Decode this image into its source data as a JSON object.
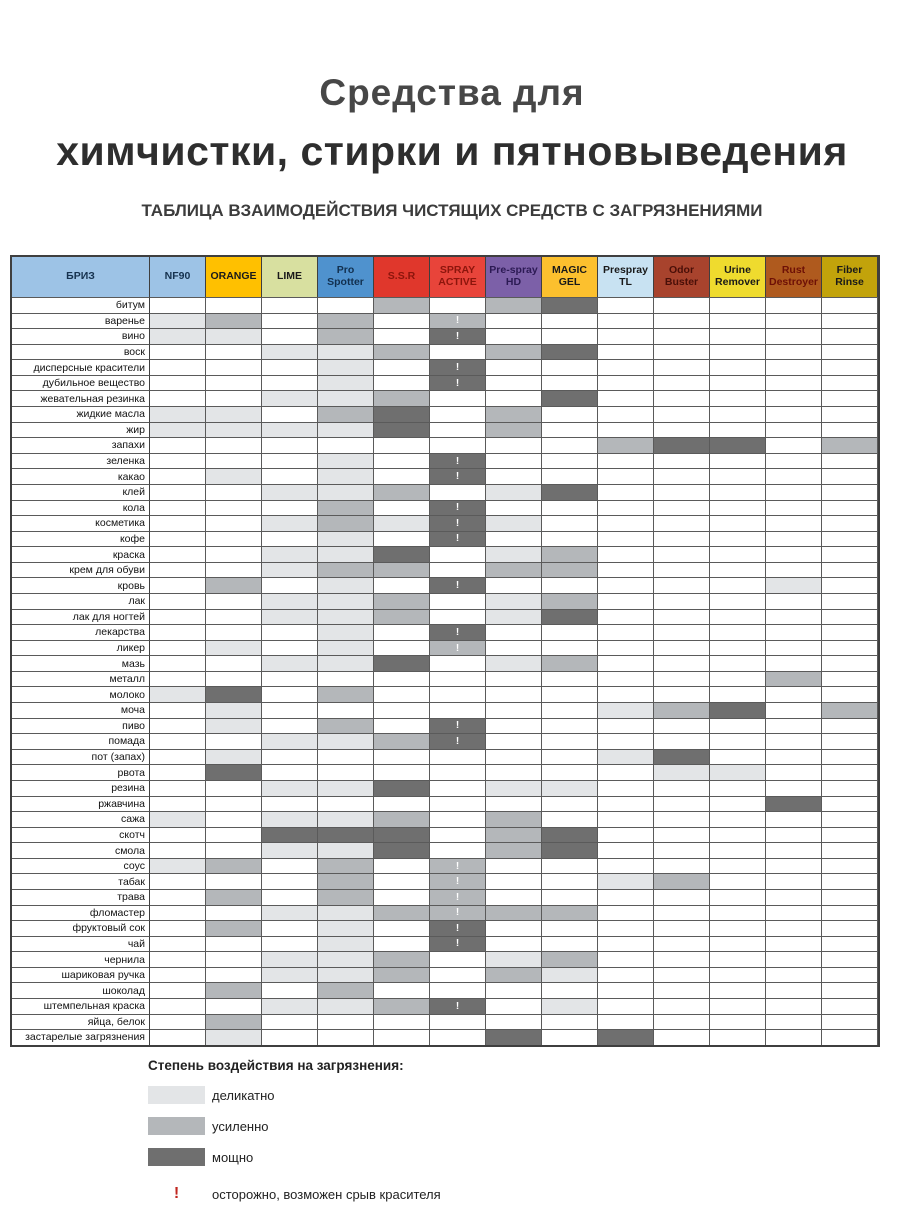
{
  "title": {
    "line1": "Средства для",
    "line2": "химчистки, стирки и пятновыведения"
  },
  "subtitle": "ТАБЛИЦА ВЗАИМОДЕЙСТВИЯ ЧИСТЯЩИХ СРЕДСТВ С ЗАГРЯЗНЕНИЯМИ",
  "chart_data": {
    "type": "heatmap",
    "corner": {
      "label": "БРИЗ",
      "bg": "#9dc3e6",
      "fg": "#16324f"
    },
    "palette": {
      "L": "#e3e5e7",
      "M": "#b4b7ba",
      "D": "#6f6f6f"
    },
    "value_meaning": {
      "L": "деликатно",
      "M": "усиленно",
      "D": "мощно",
      "!": "осторожно, возможен срыв красителя"
    },
    "columns": [
      {
        "label": "NF90",
        "bg": "#9dc3e6",
        "fg": "#16324f"
      },
      {
        "label": "ORANGE",
        "bg": "#ffc000",
        "fg": "#1a1a1a"
      },
      {
        "label": "LIME",
        "bg": "#d8e0a0",
        "fg": "#1a1a1a"
      },
      {
        "label": "Pro Spotter",
        "bg": "#4f92ce",
        "fg": "#12304f"
      },
      {
        "label": "S.S.R",
        "bg": "#e0372c",
        "fg": "#8c150c"
      },
      {
        "label": "SPRAY ACTIVE",
        "bg": "#e8443a",
        "fg": "#8c150c"
      },
      {
        "label": "Pre-spray HD",
        "bg": "#7c60a8",
        "fg": "#2c1a54"
      },
      {
        "label": "MAGIC GEL",
        "bg": "#fcc02e",
        "fg": "#191919"
      },
      {
        "label": "Prespray TL",
        "bg": "#c8e2f2",
        "fg": "#191919"
      },
      {
        "label": "Odor Buster",
        "bg": "#a8432d",
        "fg": "#4a0f08"
      },
      {
        "label": "Urine Remover",
        "bg": "#efdb2e",
        "fg": "#191919"
      },
      {
        "label": "Rust Destroyer",
        "bg": "#af5a1e",
        "fg": "#6e1006"
      },
      {
        "label": "Fiber Rinse",
        "bg": "#c2a30b",
        "fg": "#191919"
      }
    ],
    "rows": [
      {
        "label": "битум",
        "cells": [
          "",
          "",
          "",
          "",
          "M",
          "",
          "M",
          "D",
          "",
          "",
          "",
          "",
          ""
        ]
      },
      {
        "label": "варенье",
        "cells": [
          "L",
          "M",
          "",
          "M",
          "",
          "M!",
          "",
          "",
          "",
          "",
          "",
          "",
          ""
        ]
      },
      {
        "label": "вино",
        "cells": [
          "L",
          "L",
          "",
          "M",
          "",
          "D!",
          "",
          "",
          "",
          "",
          "",
          "",
          ""
        ]
      },
      {
        "label": "воск",
        "cells": [
          "",
          "",
          "L",
          "L",
          "M",
          "",
          "M",
          "D",
          "",
          "",
          "",
          "",
          ""
        ]
      },
      {
        "label": "дисперсные красители",
        "cells": [
          "",
          "",
          "",
          "L",
          "",
          "D!",
          "",
          "",
          "",
          "",
          "",
          "",
          ""
        ]
      },
      {
        "label": "дубильное вещество",
        "cells": [
          "",
          "",
          "",
          "L",
          "",
          "D!",
          "",
          "",
          "",
          "",
          "",
          "",
          ""
        ]
      },
      {
        "label": "жевательная резинка",
        "cells": [
          "",
          "",
          "L",
          "L",
          "M",
          "",
          "",
          "D",
          "",
          "",
          "",
          "",
          ""
        ]
      },
      {
        "label": "жидкие масла",
        "cells": [
          "L",
          "L",
          "",
          "M",
          "D",
          "",
          "M",
          "",
          "",
          "",
          "",
          "",
          ""
        ]
      },
      {
        "label": "жир",
        "cells": [
          "L",
          "L",
          "L",
          "L",
          "D",
          "",
          "M",
          "",
          "",
          "",
          "",
          "",
          ""
        ]
      },
      {
        "label": "запахи",
        "cells": [
          "",
          "",
          "",
          "",
          "",
          "",
          "",
          "",
          "M",
          "D",
          "D",
          "",
          "M"
        ]
      },
      {
        "label": "зеленка",
        "cells": [
          "",
          "",
          "",
          "L",
          "",
          "D!",
          "",
          "",
          "",
          "",
          "",
          "",
          ""
        ]
      },
      {
        "label": "какао",
        "cells": [
          "",
          "L",
          "",
          "L",
          "",
          "D!",
          "",
          "",
          "",
          "",
          "",
          "",
          ""
        ]
      },
      {
        "label": "клей",
        "cells": [
          "",
          "",
          "L",
          "L",
          "M",
          "",
          "L",
          "D",
          "",
          "",
          "",
          "",
          ""
        ]
      },
      {
        "label": "кола",
        "cells": [
          "",
          "",
          "",
          "M",
          "",
          "D!",
          "",
          "",
          "",
          "",
          "",
          "",
          ""
        ]
      },
      {
        "label": "косметика",
        "cells": [
          "",
          "",
          "L",
          "M",
          "L",
          "D!",
          "L",
          "",
          "",
          "",
          "",
          "",
          ""
        ]
      },
      {
        "label": "кофе",
        "cells": [
          "",
          "",
          "",
          "L",
          "",
          "D!",
          "",
          "",
          "",
          "",
          "",
          "",
          ""
        ]
      },
      {
        "label": "краска",
        "cells": [
          "",
          "",
          "L",
          "L",
          "D",
          "",
          "L",
          "M",
          "",
          "",
          "",
          "",
          ""
        ]
      },
      {
        "label": "крем для обуви",
        "cells": [
          "",
          "",
          "L",
          "M",
          "M",
          "",
          "M",
          "M",
          "",
          "",
          "",
          "",
          ""
        ]
      },
      {
        "label": "кровь",
        "cells": [
          "",
          "M",
          "",
          "L",
          "",
          "D!",
          "",
          "",
          "",
          "",
          "",
          "L",
          ""
        ]
      },
      {
        "label": "лак",
        "cells": [
          "",
          "",
          "L",
          "L",
          "M",
          "",
          "L",
          "M",
          "",
          "",
          "",
          "",
          ""
        ]
      },
      {
        "label": "лак для ногтей",
        "cells": [
          "",
          "",
          "L",
          "L",
          "M",
          "",
          "L",
          "D",
          "",
          "",
          "",
          "",
          ""
        ]
      },
      {
        "label": "лекарства",
        "cells": [
          "",
          "",
          "",
          "L",
          "",
          "D!",
          "",
          "",
          "",
          "",
          "",
          "",
          ""
        ]
      },
      {
        "label": "ликер",
        "cells": [
          "",
          "L",
          "",
          "L",
          "",
          "M!",
          "",
          "",
          "",
          "",
          "",
          "",
          ""
        ]
      },
      {
        "label": "мазь",
        "cells": [
          "",
          "",
          "L",
          "L",
          "D",
          "",
          "L",
          "M",
          "",
          "",
          "",
          "",
          ""
        ]
      },
      {
        "label": "металл",
        "cells": [
          "",
          "",
          "",
          "",
          "",
          "",
          "",
          "",
          "",
          "",
          "",
          "M",
          ""
        ]
      },
      {
        "label": "молоко",
        "cells": [
          "L",
          "D",
          "",
          "M",
          "",
          "",
          "",
          "",
          "",
          "",
          "",
          "",
          ""
        ]
      },
      {
        "label": "моча",
        "cells": [
          "",
          "L",
          "",
          "",
          "",
          "",
          "",
          "",
          "L",
          "M",
          "D",
          "",
          "M"
        ]
      },
      {
        "label": "пиво",
        "cells": [
          "",
          "L",
          "",
          "M",
          "",
          "D!",
          "",
          "",
          "",
          "",
          "",
          "",
          ""
        ]
      },
      {
        "label": "помада",
        "cells": [
          "",
          "",
          "L",
          "L",
          "M",
          "D!",
          "",
          "",
          "",
          "",
          "",
          "",
          ""
        ]
      },
      {
        "label": "пот (запах)",
        "cells": [
          "",
          "L",
          "",
          "",
          "",
          "",
          "",
          "",
          "L",
          "D",
          "",
          "",
          ""
        ]
      },
      {
        "label": "рвота",
        "cells": [
          "",
          "D",
          "",
          "",
          "",
          "",
          "",
          "",
          "",
          "L",
          "L",
          "",
          ""
        ]
      },
      {
        "label": "резина",
        "cells": [
          "",
          "",
          "L",
          "L",
          "D",
          "",
          "L",
          "L",
          "",
          "",
          "",
          "",
          ""
        ]
      },
      {
        "label": "ржавчина",
        "cells": [
          "",
          "",
          "",
          "",
          "",
          "",
          "",
          "",
          "",
          "",
          "",
          "D",
          ""
        ]
      },
      {
        "label": "сажа",
        "cells": [
          "L",
          "",
          "L",
          "L",
          "M",
          "",
          "M",
          "",
          "",
          "",
          "",
          "",
          ""
        ]
      },
      {
        "label": "скотч",
        "cells": [
          "",
          "",
          "D",
          "D",
          "D",
          "",
          "M",
          "D",
          "",
          "",
          "",
          "",
          ""
        ]
      },
      {
        "label": "смола",
        "cells": [
          "",
          "",
          "L",
          "L",
          "D",
          "",
          "M",
          "D",
          "",
          "",
          "",
          "",
          ""
        ]
      },
      {
        "label": "соус",
        "cells": [
          "L",
          "M",
          "",
          "M",
          "",
          "M!",
          "",
          "",
          "",
          "",
          "",
          "",
          ""
        ]
      },
      {
        "label": "табак",
        "cells": [
          "",
          "",
          "",
          "M",
          "",
          "M!",
          "",
          "",
          "L",
          "M",
          "",
          "",
          ""
        ]
      },
      {
        "label": "трава",
        "cells": [
          "",
          "M",
          "",
          "M",
          "",
          "M!",
          "",
          "",
          "",
          "",
          "",
          "",
          ""
        ]
      },
      {
        "label": "фломастер",
        "cells": [
          "",
          "",
          "L",
          "L",
          "M",
          "M!",
          "M",
          "M",
          "",
          "",
          "",
          "",
          ""
        ]
      },
      {
        "label": "фруктовый сок",
        "cells": [
          "",
          "M",
          "",
          "L",
          "",
          "D!",
          "",
          "",
          "",
          "",
          "",
          "",
          ""
        ]
      },
      {
        "label": "чай",
        "cells": [
          "",
          "",
          "",
          "L",
          "",
          "D!",
          "",
          "",
          "",
          "",
          "",
          "",
          ""
        ]
      },
      {
        "label": "чернила",
        "cells": [
          "",
          "",
          "L",
          "L",
          "M",
          "",
          "L",
          "M",
          "",
          "",
          "",
          "",
          ""
        ]
      },
      {
        "label": "шариковая ручка",
        "cells": [
          "",
          "",
          "L",
          "L",
          "M",
          "",
          "M",
          "L",
          "",
          "",
          "",
          "",
          ""
        ]
      },
      {
        "label": "шоколад",
        "cells": [
          "",
          "M",
          "",
          "M",
          "",
          "",
          "",
          "",
          "",
          "",
          "",
          "",
          ""
        ]
      },
      {
        "label": "штемпельная краска",
        "cells": [
          "",
          "",
          "L",
          "L",
          "M",
          "D!",
          "",
          "L",
          "",
          "",
          "",
          "",
          ""
        ]
      },
      {
        "label": "яйца, белок",
        "cells": [
          "",
          "M",
          "",
          "",
          "",
          "",
          "",
          "",
          "",
          "",
          "",
          "",
          ""
        ]
      },
      {
        "label": "застарелые загрязнения",
        "cells": [
          "",
          "L",
          "",
          "",
          "",
          "",
          "D",
          "",
          "D",
          "",
          "",
          "",
          ""
        ]
      }
    ]
  },
  "legend": {
    "title": "Степень воздействия на загрязнения:",
    "items": [
      {
        "label": "деликатно",
        "color": "#e3e5e7"
      },
      {
        "label": "усиленно",
        "color": "#b4b7ba"
      },
      {
        "label": "мощно",
        "color": "#6f6f6f"
      }
    ],
    "warning": {
      "symbol": "!",
      "label": "осторожно, возможен срыв красителя"
    }
  }
}
